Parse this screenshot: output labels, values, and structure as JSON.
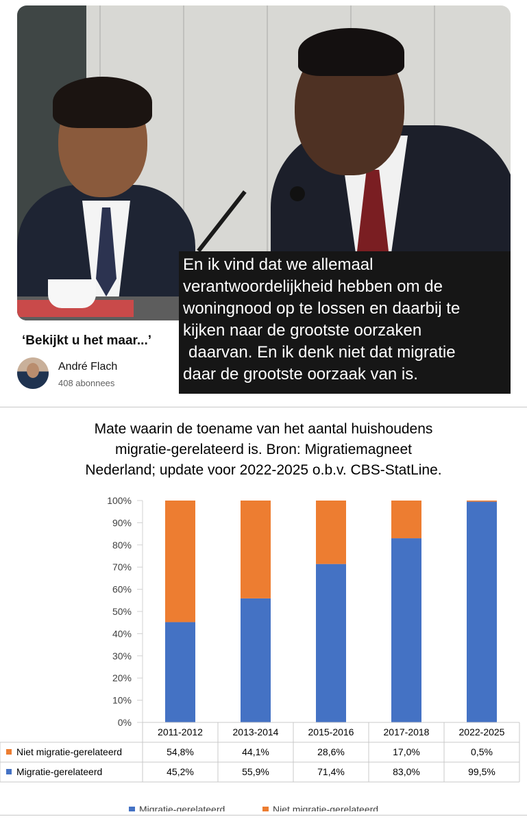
{
  "video": {
    "caption_lines": [
      "En ik vind dat we allemaal",
      "verantwoordelijkheid hebben om de",
      "woningnood op te lossen en daarbij te",
      "kijken naar de grootste oorzaken",
      "daarvan. En ik denk niet dat migratie",
      "daar de grootste oorzaak van is."
    ],
    "title": "‘Bekijkt u het maar...’",
    "channel": "André Flach",
    "subscribers": "408 abonnees"
  },
  "chart_title_lines": [
    "Mate waarin de toename van het aantal huishoudens",
    "migratie-gerelateerd is. Bron: Migratiemagneet",
    "Nederland; update voor 2022-2025 o.b.v. CBS-StatLine."
  ],
  "chart_data": {
    "type": "bar",
    "stacked": true,
    "title": "Mate waarin de toename van het aantal huishoudens migratie-gerelateerd is. Bron: Migratiemagneet Nederland; update voor 2022-2025 o.b.v. CBS-StatLine.",
    "categories": [
      "2011-2012",
      "2013-2014",
      "2015-2016",
      "2017-2018",
      "2022-2025"
    ],
    "ylim": [
      0,
      100
    ],
    "yticks": [
      "0%",
      "10%",
      "20%",
      "30%",
      "40%",
      "50%",
      "60%",
      "70%",
      "80%",
      "90%",
      "100%"
    ],
    "series": [
      {
        "name": "Migratie-gerelateerd",
        "color": "#4472c4",
        "values": [
          45.2,
          55.9,
          71.4,
          83.0,
          99.5
        ],
        "labels": [
          "45,2%",
          "55,9%",
          "71,4%",
          "83,0%",
          "99,5%"
        ]
      },
      {
        "name": "Niet migratie-gerelateerd",
        "color": "#ed7d31",
        "values": [
          54.8,
          44.1,
          28.6,
          17.0,
          0.5
        ],
        "labels": [
          "54,8%",
          "44,1%",
          "28,6%",
          "17,0%",
          "0,5%"
        ]
      }
    ],
    "data_table": true,
    "legend_position": "bottom",
    "grid": false
  }
}
